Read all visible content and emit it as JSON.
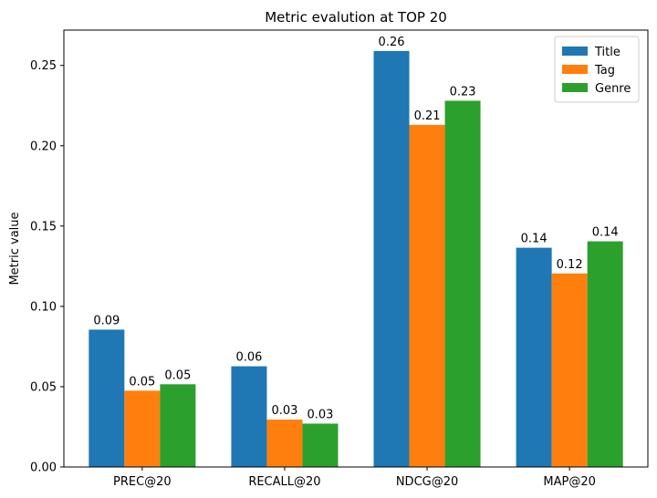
{
  "chart_data": {
    "type": "bar",
    "title": "Metric evalution at TOP 20",
    "xlabel": "",
    "ylabel": "Metric value",
    "categories": [
      "PREC@20",
      "RECALL@20",
      "NDCG@20",
      "MAP@20"
    ],
    "series": [
      {
        "name": "Title",
        "color": "#1f77b4",
        "values": [
          0.0855,
          0.0627,
          0.259,
          0.1365
        ],
        "labels": [
          "0.09",
          "0.06",
          "0.26",
          "0.14"
        ]
      },
      {
        "name": "Tag",
        "color": "#ff7f0e",
        "values": [
          0.0475,
          0.0295,
          0.213,
          0.1205
        ],
        "labels": [
          "0.05",
          "0.03",
          "0.21",
          "0.12"
        ]
      },
      {
        "name": "Genre",
        "color": "#2ca02c",
        "values": [
          0.0515,
          0.027,
          0.228,
          0.1405
        ],
        "labels": [
          "0.05",
          "0.03",
          "0.23",
          "0.14"
        ]
      }
    ],
    "ylim": [
      0,
      0.272
    ],
    "yticks": [
      0.0,
      0.05,
      0.1,
      0.15,
      0.2,
      0.25
    ],
    "ytick_labels": [
      "0.00",
      "0.05",
      "0.10",
      "0.15",
      "0.20",
      "0.25"
    ],
    "grid": false,
    "legend_position": "top-right"
  }
}
